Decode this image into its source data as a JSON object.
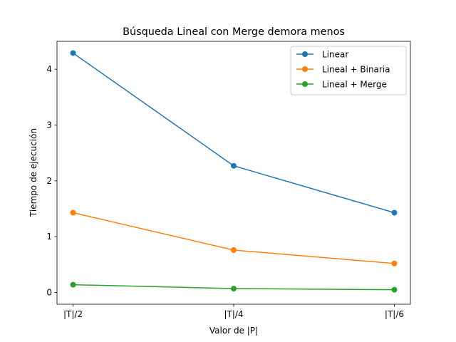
{
  "chart_data": {
    "type": "line",
    "title": "Búsqueda Lineal con Merge demora menos",
    "xlabel": "Valor de |P|",
    "ylabel": "Tiempo de ejecución",
    "categories": [
      "|T|/2",
      "|T|/4",
      "|T|/6"
    ],
    "yticks": [
      "0",
      "1",
      "2",
      "3",
      "4"
    ],
    "ylim": [
      -0.21,
      4.5
    ],
    "grid": false,
    "legend_position": "top-right",
    "series": [
      {
        "name": "Linear",
        "color": "#1f77b4",
        "values": [
          4.29,
          2.27,
          1.43
        ]
      },
      {
        "name": "Lineal + Binaria",
        "color": "#ff7f0e",
        "values": [
          1.43,
          0.76,
          0.52
        ]
      },
      {
        "name": "Lineal + Merge",
        "color": "#2ca02c",
        "values": [
          0.14,
          0.07,
          0.05
        ]
      }
    ]
  }
}
